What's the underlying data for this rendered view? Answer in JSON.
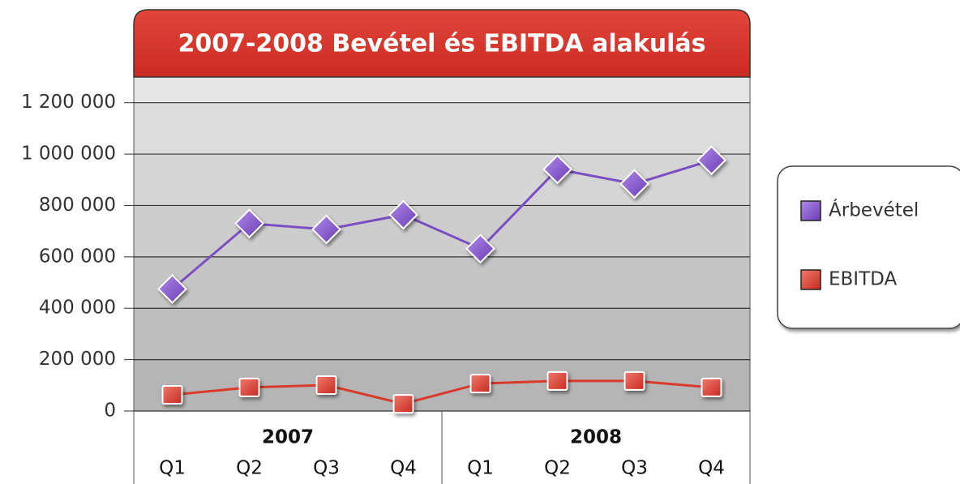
{
  "chart_data": {
    "type": "line",
    "title": "2007-2008 Bevétel és EBITDA alakulás",
    "groups": [
      "2007",
      "2008"
    ],
    "categories": [
      "Q1",
      "Q2",
      "Q3",
      "Q4",
      "Q1",
      "Q2",
      "Q3",
      "Q4"
    ],
    "series": [
      {
        "name": "Árbevétel",
        "color": "#7b4fc4",
        "values": [
          475000,
          730000,
          707000,
          764000,
          632000,
          941000,
          884000,
          976000
        ]
      },
      {
        "name": "EBITDA",
        "color": "#d93a2b",
        "values": [
          63000,
          92000,
          101000,
          28000,
          107000,
          117000,
          117000,
          92000
        ]
      }
    ],
    "ylim": [
      0,
      1300000
    ],
    "yticks": [
      0,
      {
        "value": 200000,
        "label": "200 000"
      },
      {
        "value": 400000,
        "label": "400 000"
      },
      {
        "value": 600000,
        "label": "600 000"
      },
      {
        "value": 800000,
        "label": "800 000"
      },
      {
        "value": 1000000,
        "label": "1 000 000"
      },
      {
        "value": 1200000,
        "label": "1 200 000"
      }
    ],
    "grid": true,
    "legend": "right"
  }
}
